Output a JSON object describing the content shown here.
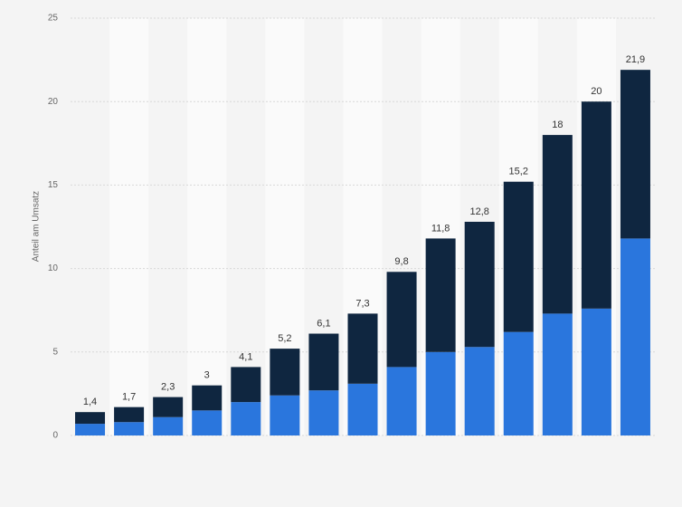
{
  "chart_data": {
    "type": "stacked_bar",
    "y_label": "Anteil am Umsatz",
    "categories": [
      null,
      null,
      null,
      null,
      null,
      null,
      null,
      null,
      null,
      null,
      null,
      null,
      null,
      null,
      null
    ],
    "series": [
      {
        "color": "#2a76dd",
        "values": [
          0.7,
          0.8,
          1.1,
          1.5,
          2.0,
          2.4,
          2.7,
          3.1,
          4.1,
          5.0,
          5.3,
          6.2,
          7.3,
          7.6,
          11.8
        ]
      },
      {
        "color": "#0f2640",
        "values": [
          0.7,
          0.9,
          1.2,
          1.5,
          2.1,
          2.8,
          3.4,
          4.2,
          5.7,
          6.8,
          7.5,
          9.0,
          10.7,
          12.4,
          10.1
        ]
      }
    ],
    "totals": [
      1.4,
      1.7,
      2.3,
      3,
      4.1,
      5.2,
      6.1,
      7.3,
      9.8,
      11.8,
      12.8,
      15.2,
      18,
      20,
      21.9
    ],
    "total_labels": [
      "1,4",
      "1,7",
      "2,3",
      "3",
      "4,1",
      "5,2",
      "6,1",
      "7,3",
      "9,8",
      "11,8",
      "12,8",
      "15,2",
      "18",
      "20",
      "21,9"
    ],
    "ylim": [
      0,
      25
    ],
    "yticks": [
      0,
      5,
      10,
      15,
      20,
      25
    ],
    "grid": true
  }
}
